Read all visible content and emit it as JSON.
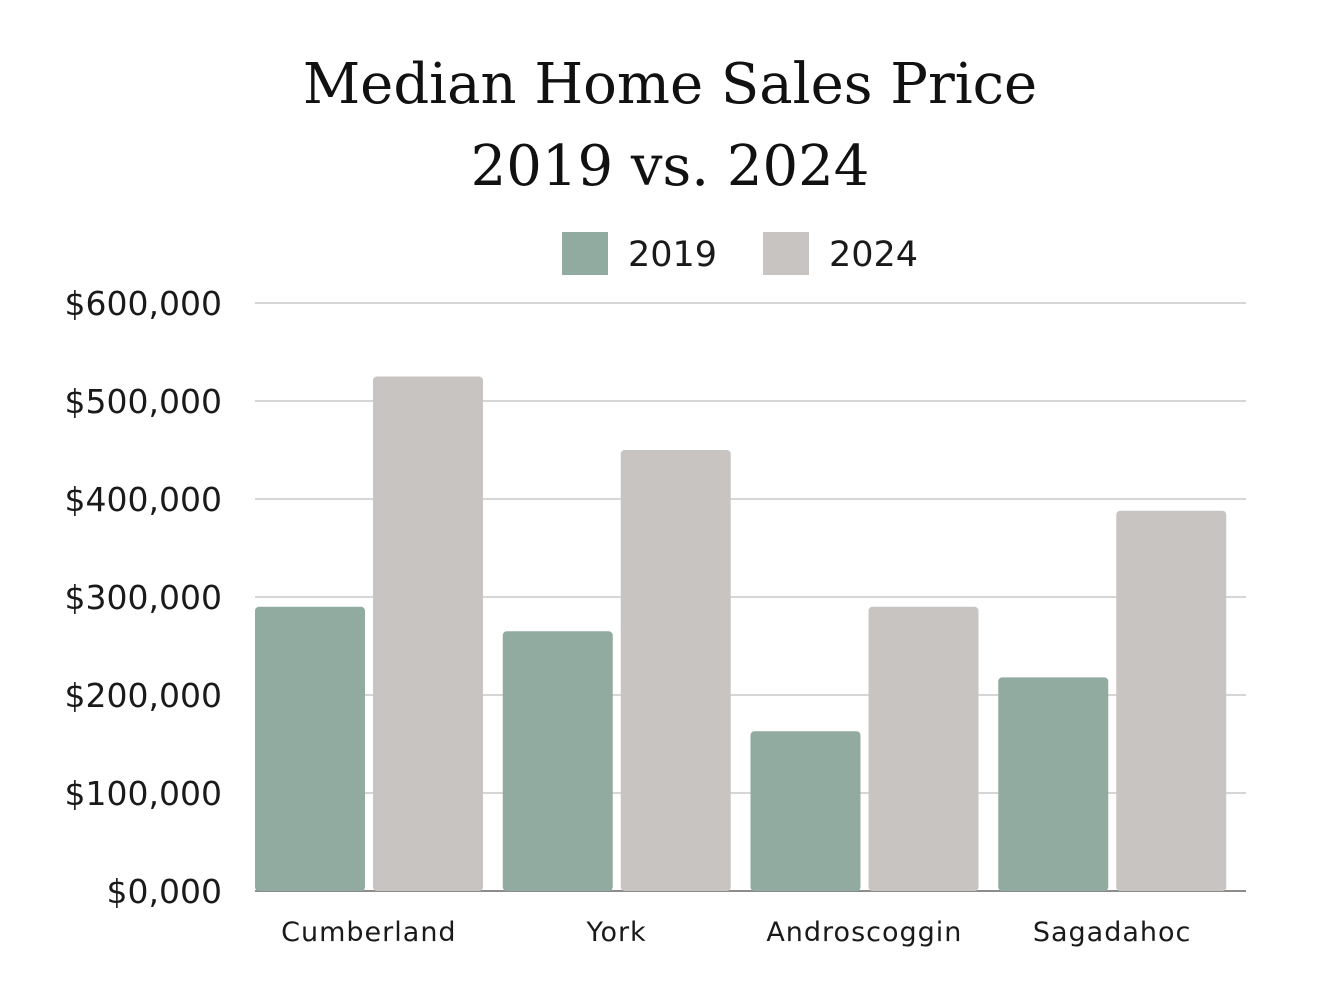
{
  "title_line1": "Median Home Sales Price",
  "title_line2": "2019 vs. 2024",
  "chart_data": {
    "type": "bar",
    "title": "Median Home Sales Price 2019 vs. 2024",
    "categories": [
      "Cumberland",
      "York",
      "Androscoggin",
      "Sagadahoc"
    ],
    "series": [
      {
        "name": "2019",
        "color": "#92aba0",
        "values": [
          290000,
          265000,
          163000,
          218000
        ]
      },
      {
        "name": "2024",
        "color": "#c8c4c1",
        "values": [
          525000,
          450000,
          290000,
          388000
        ]
      }
    ],
    "yticks": [
      "$0,000",
      "$100,000",
      "$200,000",
      "$300,000",
      "$400,000",
      "$500,000",
      "$600,000"
    ],
    "ylim": [
      0,
      600000
    ],
    "grid": true,
    "legend": "top-center"
  }
}
